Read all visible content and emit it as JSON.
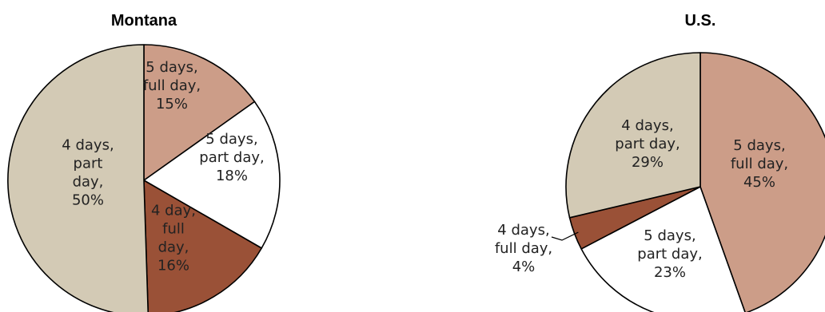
{
  "chart_data": [
    {
      "type": "pie",
      "title": "Montana",
      "slices": [
        {
          "label": [
            "5 days,",
            "full day,",
            "15%"
          ],
          "value": 15,
          "color": "#cc9d88"
        },
        {
          "label": [
            "5 days,",
            "part day,",
            "18%"
          ],
          "value": 18,
          "color": "#ffffff"
        },
        {
          "label": [
            "4 day,",
            "full",
            "day,",
            "16%"
          ],
          "value": 16,
          "color": "#9a5137"
        },
        {
          "label": [
            "4 days,",
            "part",
            "day,",
            "50%"
          ],
          "value": 50,
          "color": "#d3cab5"
        }
      ]
    },
    {
      "type": "pie",
      "title": "U.S.",
      "slices": [
        {
          "label": [
            "5 days,",
            "full day,",
            "45%"
          ],
          "value": 45,
          "color": "#cc9d88"
        },
        {
          "label": [
            "5 days,",
            "part day,",
            "23%"
          ],
          "value": 23,
          "color": "#ffffff"
        },
        {
          "label": [
            "4 days,",
            "full day,",
            "4%"
          ],
          "value": 4,
          "color": "#9a5137"
        },
        {
          "label": [
            "4 days,",
            "part day,",
            "29%"
          ],
          "value": 29,
          "color": "#d3cab5"
        }
      ]
    }
  ]
}
